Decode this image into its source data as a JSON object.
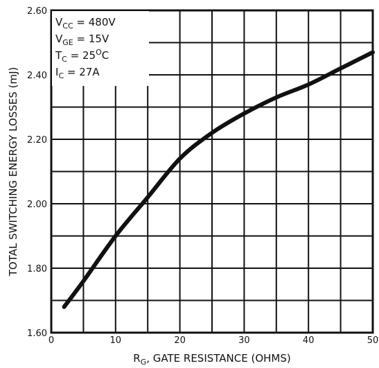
{
  "chart_data": {
    "type": "line",
    "title": "",
    "xlabel": {
      "main": "R",
      "sub": "G",
      "rest": ", GATE RESISTANCE (OHMS)"
    },
    "ylabel": "TOTAL SWITCHING ENERGY LOSSES (mJ)",
    "xlim": [
      0,
      50
    ],
    "ylim": [
      1.6,
      2.6
    ],
    "x_ticks": [
      "0",
      "10",
      "20",
      "30",
      "40",
      "50"
    ],
    "y_ticks": [
      "1.60",
      "1.80",
      "2.00",
      "2.20",
      "2.40",
      "2.60"
    ],
    "grid": true,
    "series": [
      {
        "x": [
          2,
          5,
          10,
          15,
          20,
          25,
          30,
          35,
          40,
          45,
          50
        ],
        "y": [
          1.68,
          1.76,
          1.9,
          2.02,
          2.14,
          2.22,
          2.28,
          2.33,
          2.37,
          2.42,
          2.47
        ]
      }
    ],
    "annotations": [
      {
        "main": "V",
        "sub": "CC",
        "rest": " = 480V"
      },
      {
        "main": "V",
        "sub": "GE",
        "rest": " = 15V"
      },
      {
        "main": "T",
        "sub": "C",
        "rest": " = 25",
        "sup": "O",
        "tail": "C"
      },
      {
        "main": "I",
        "sub": "C",
        "rest": " = 27A"
      }
    ]
  }
}
